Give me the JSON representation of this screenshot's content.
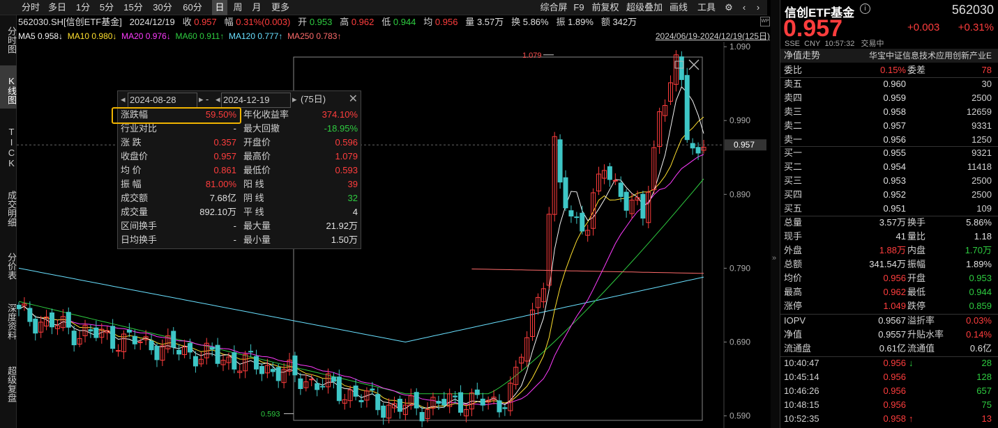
{
  "toolbar": {
    "items": [
      "分时",
      "多日",
      "1分",
      "5分",
      "15分",
      "30分",
      "60分",
      "日",
      "周",
      "月",
      "更多"
    ],
    "right": [
      "综合屏",
      "F9",
      "前复权",
      "超级叠加",
      "画线",
      "工具"
    ],
    "active": "日"
  },
  "leftnav": [
    "分时图",
    "K线图",
    "TICK",
    "成交明细",
    "分价表",
    "深度资料",
    "超级复盘"
  ],
  "info": {
    "code": "562030.SH[信创ETF基金]",
    "date": "2024/12/19",
    "close_label": "收",
    "close": "0.957",
    "chg_label": "幅",
    "chg": "0.31%(0.003)",
    "open_label": "开",
    "open": "0.953",
    "high_label": "高",
    "high": "0.962",
    "low_label": "低",
    "low": "0.944",
    "avg_label": "均",
    "avg": "0.956",
    "vol_label": "量",
    "vol": "3.57万",
    "turn_label": "换",
    "turn": "5.86%",
    "amp_label": "振",
    "amp": "1.89%",
    "amt_label": "额",
    "amt": "342万"
  },
  "ma": {
    "ma5": "MA5 0.958↓",
    "ma10": "MA10 0.980↓",
    "ma20": "MA20 0.976↓",
    "ma60": "MA60 0.911↑",
    "ma120": "MA120 0.777↑",
    "ma250": "MA250 0.783↑",
    "range": "2024/06/19-2024/12/19(125日)"
  },
  "chart_data": {
    "type": "candlestick",
    "ylim": [
      0.583,
      1.092
    ],
    "yticks": [
      "1.090",
      "0.990",
      "0.890",
      "0.790",
      "0.690",
      "0.590"
    ],
    "current_price_label": "0.957",
    "max_label": "1.079",
    "min_label": "0.593",
    "ma_colors": {
      "ma5": "#f5f5f5",
      "ma10": "#ffe02e",
      "ma20": "#ff3cff",
      "ma60": "#2ecc40",
      "ma120": "#69e0ff",
      "ma250": "#ff6b6b"
    }
  },
  "popup": {
    "start": "2024-08-28",
    "end": "2024-12-19",
    "count": "(75日)",
    "rows": [
      [
        "涨跌幅",
        "59.50%",
        "年化收益率",
        "374.10%"
      ],
      [
        "行业对比",
        "-",
        "最大回撤",
        "-18.95%"
      ],
      [
        "涨 跌",
        "0.357",
        "开盘价",
        "0.596"
      ],
      [
        "收盘价",
        "0.957",
        "最高价",
        "1.079"
      ],
      [
        "均 价",
        "0.861",
        "最低价",
        "0.593"
      ],
      [
        "振 幅",
        "81.00%",
        "阳 线",
        "39"
      ],
      [
        "成交额",
        "7.68亿",
        "阴 线",
        "32"
      ],
      [
        "成交量",
        "892.10万",
        "平 线",
        "4"
      ],
      [
        "区间换手",
        "-",
        "最大量",
        "21.92万"
      ],
      [
        "日均换手",
        "-",
        "最小量",
        "1.50万"
      ]
    ]
  },
  "quote": {
    "name": "信创ETF基金",
    "code": "562030",
    "price": "0.957",
    "chg": "+0.003",
    "pct": "+0.31%",
    "exch": "SSE",
    "cur": "CNY",
    "time": "10:57:32",
    "status": "交易中",
    "nav_label": "净值走势",
    "index_name": "华宝中证信息技术应用创新产业E",
    "weibi": [
      "委比",
      "0.15%",
      "委差",
      "78"
    ],
    "asks": [
      [
        "卖五",
        "0.960",
        "30"
      ],
      [
        "卖四",
        "0.959",
        "2500"
      ],
      [
        "卖三",
        "0.958",
        "12659"
      ],
      [
        "卖二",
        "0.957",
        "9331"
      ],
      [
        "卖一",
        "0.956",
        "1250"
      ]
    ],
    "bids": [
      [
        "买一",
        "0.955",
        "9321"
      ],
      [
        "买二",
        "0.954",
        "11418"
      ],
      [
        "买三",
        "0.953",
        "2500"
      ],
      [
        "买四",
        "0.952",
        "2500"
      ],
      [
        "买五",
        "0.951",
        "109"
      ]
    ],
    "stats": [
      [
        "总量",
        "3.57万",
        "换手",
        "5.86%"
      ],
      [
        "现手",
        "41",
        "量比",
        "1.18"
      ],
      [
        "外盘",
        "1.88万",
        "内盘",
        "1.70万"
      ],
      [
        "总额",
        "341.54万",
        "振幅",
        "1.89%"
      ],
      [
        "均价",
        "0.956",
        "开盘",
        "0.953"
      ],
      [
        "最高",
        "0.962",
        "最低",
        "0.944"
      ],
      [
        "涨停",
        "1.049",
        "跌停",
        "0.859"
      ]
    ],
    "iopv": [
      [
        "IOPV",
        "0.9567",
        "溢折率",
        "0.03%"
      ],
      [
        "净值",
        "0.9557",
        "升贴水率",
        "0.14%"
      ],
      [
        "流通盘",
        "0.61亿",
        "流通值",
        "0.6亿"
      ]
    ],
    "ticks": [
      [
        "10:40:47",
        "0.956",
        "↓",
        "28"
      ],
      [
        "10:45:14",
        "0.956",
        "",
        "128"
      ],
      [
        "10:46:26",
        "0.956",
        "",
        "657"
      ],
      [
        "10:48:15",
        "0.956",
        "",
        "75"
      ],
      [
        "10:52:35",
        "0.958",
        "↑",
        "13"
      ]
    ]
  }
}
